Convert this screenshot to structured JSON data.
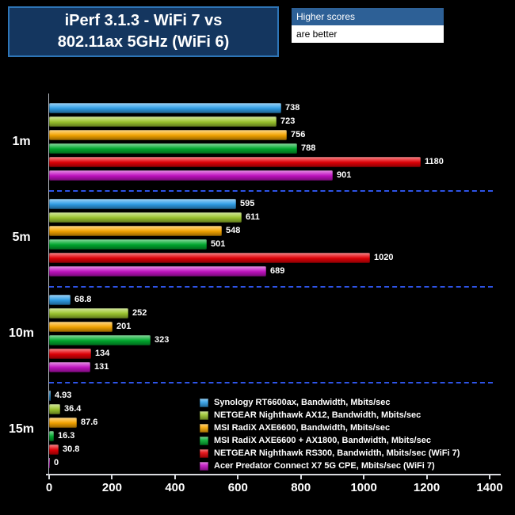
{
  "header": {
    "title_line1": "iPerf 3.1.3 - WiFi 7 vs",
    "title_line2": "802.11ax 5GHz (WiFi 6)",
    "note_line1": "Higher scores",
    "note_line2": "are better"
  },
  "chart_data": {
    "type": "bar",
    "orientation": "horizontal",
    "title": "iPerf 3.1.3 - WiFi 7 vs 802.11ax 5GHz (WiFi 6)",
    "note": "Higher scores are better",
    "categories": [
      "1m",
      "5m",
      "10m",
      "15m"
    ],
    "xlim": [
      0,
      1400
    ],
    "x_ticks": [
      "0",
      "200",
      "400",
      "600",
      "800",
      "1000",
      "1200",
      "1400"
    ],
    "grid": "dashed blue separators between category groups",
    "legend_position": "bottom-right",
    "series": [
      {
        "name": "Synology RT6600ax, Bandwidth, Mbits/sec",
        "color": "#2f9fe8",
        "values": [
          738,
          595,
          68.8,
          4.93
        ],
        "labels": [
          "738",
          "595",
          "68.8",
          "4.93"
        ]
      },
      {
        "name": "NETGEAR Nighthawk AX12, Bandwidth, Mbits/sec",
        "color": "#9dc72e",
        "values": [
          723,
          611,
          252,
          36.4
        ],
        "labels": [
          "723",
          "611",
          "252",
          "36.4"
        ]
      },
      {
        "name": "MSI RadiX AXE6600, Bandwidth, Mbits/sec",
        "color": "#f7a600",
        "values": [
          756,
          548,
          201,
          87.6
        ],
        "labels": [
          "756",
          "548",
          "201",
          "87.6"
        ]
      },
      {
        "name": "MSI RadiX AXE6600 + AX1800, Bandwidth, Mbits/sec",
        "color": "#00ab2e",
        "values": [
          788,
          501,
          323,
          16.3
        ],
        "labels": [
          "788",
          "501",
          "323",
          "16.3"
        ]
      },
      {
        "name": "NETGEAR Nighthawk RS300, Bandwidth, Mbits/sec (WiFi 7)",
        "color": "#e40006",
        "values": [
          1180,
          1020,
          134,
          30.8
        ],
        "labels": [
          "1180",
          "1020",
          "134",
          "30.8"
        ]
      },
      {
        "name": "Acer Predator Connect X7 5G CPE, Mbits/sec (WiFi 7)",
        "color": "#c211c2",
        "values": [
          901,
          689,
          131,
          0
        ],
        "labels": [
          "901",
          "689",
          "131",
          "0"
        ]
      }
    ]
  }
}
